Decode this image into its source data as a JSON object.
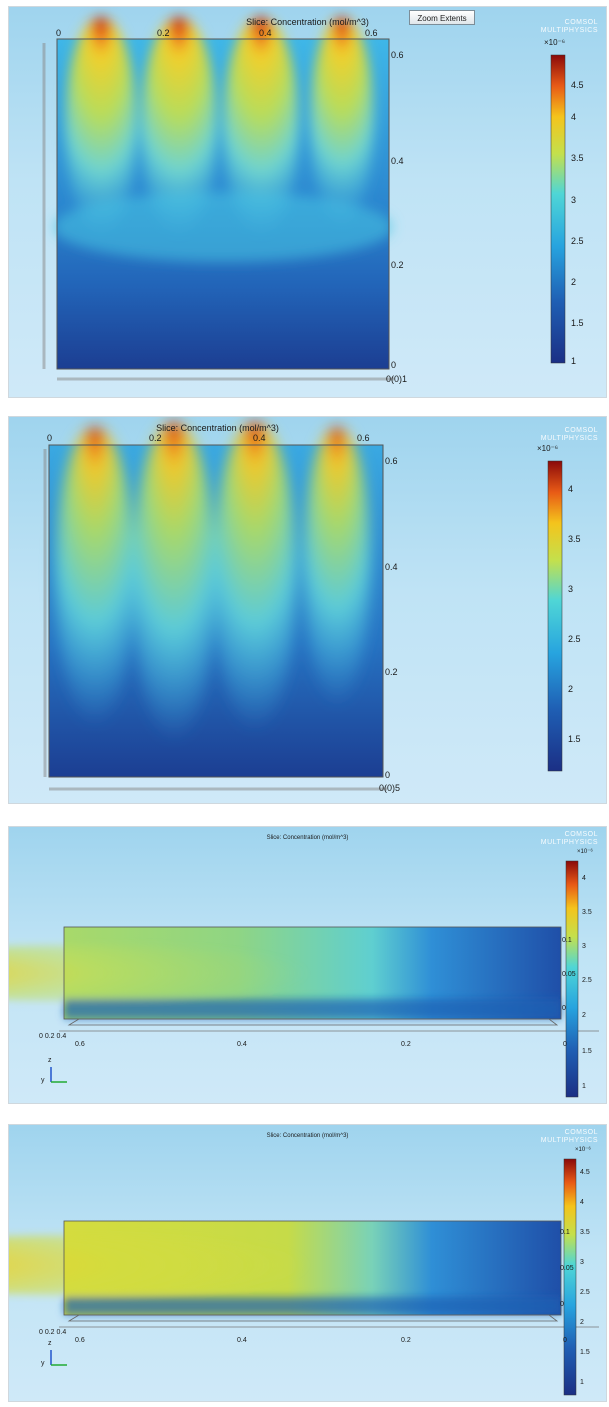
{
  "toolbar": {
    "zoom_extents_label": "Zoom Extents"
  },
  "logo": {
    "line1": "COMSOL",
    "line2": "MULTIPHYSICS"
  },
  "panels": [
    {
      "title": "Slice: Concentration (mol/m^3)",
      "exponent": "×10⁻⁶",
      "x_ticks": [
        "0",
        "0.2",
        "0.4",
        "0.6"
      ],
      "y_ticks": [
        "0.6",
        "0.4",
        "0.2",
        "0"
      ],
      "corner_label": "0(0)1",
      "colorbar_ticks": [
        "4.5",
        "4",
        "3.5",
        "3",
        "2.5",
        "2",
        "1.5",
        "1"
      ],
      "colorbar_range": [
        1,
        4.8
      ]
    },
    {
      "title": "Slice: Concentration (mol/m^3)",
      "exponent": "×10⁻⁶",
      "x_ticks": [
        "0",
        "0.2",
        "0.4",
        "0.6"
      ],
      "y_ticks": [
        "0.6",
        "0.4",
        "0.2",
        "0"
      ],
      "corner_label": "0(0)5",
      "colorbar_ticks": [
        "4",
        "3.5",
        "3",
        "2.5",
        "2",
        "1.5"
      ],
      "colorbar_range": [
        1.2,
        4.3
      ]
    },
    {
      "title": "Slice: Concentration (mol/m^3)",
      "exponent": "×10⁻⁶",
      "x_ticks": [
        "0.6",
        "0.4",
        "0.2",
        "0"
      ],
      "side_ticks": [
        "0.1",
        "0.05",
        "0"
      ],
      "origin_label": "0 0.2 0.4",
      "colorbar_ticks": [
        "4",
        "3.5",
        "3",
        "2.5",
        "2",
        "1.5",
        "1"
      ],
      "colorbar_range": [
        1,
        4.2
      ],
      "axis_labels": [
        "y",
        "z"
      ]
    },
    {
      "title": "Slice: Concentration (mol/m^3)",
      "exponent": "×10⁻⁶",
      "x_ticks": [
        "0.6",
        "0.4",
        "0.2",
        "0"
      ],
      "side_ticks": [
        "0.1",
        "0.05",
        "0"
      ],
      "origin_label": "0 0.2 0.4",
      "colorbar_ticks": [
        "4.5",
        "4",
        "3.5",
        "3",
        "2.5",
        "2",
        "1.5",
        "1"
      ],
      "colorbar_range": [
        0.8,
        4.7
      ],
      "axis_labels": [
        "y",
        "z"
      ]
    }
  ]
}
